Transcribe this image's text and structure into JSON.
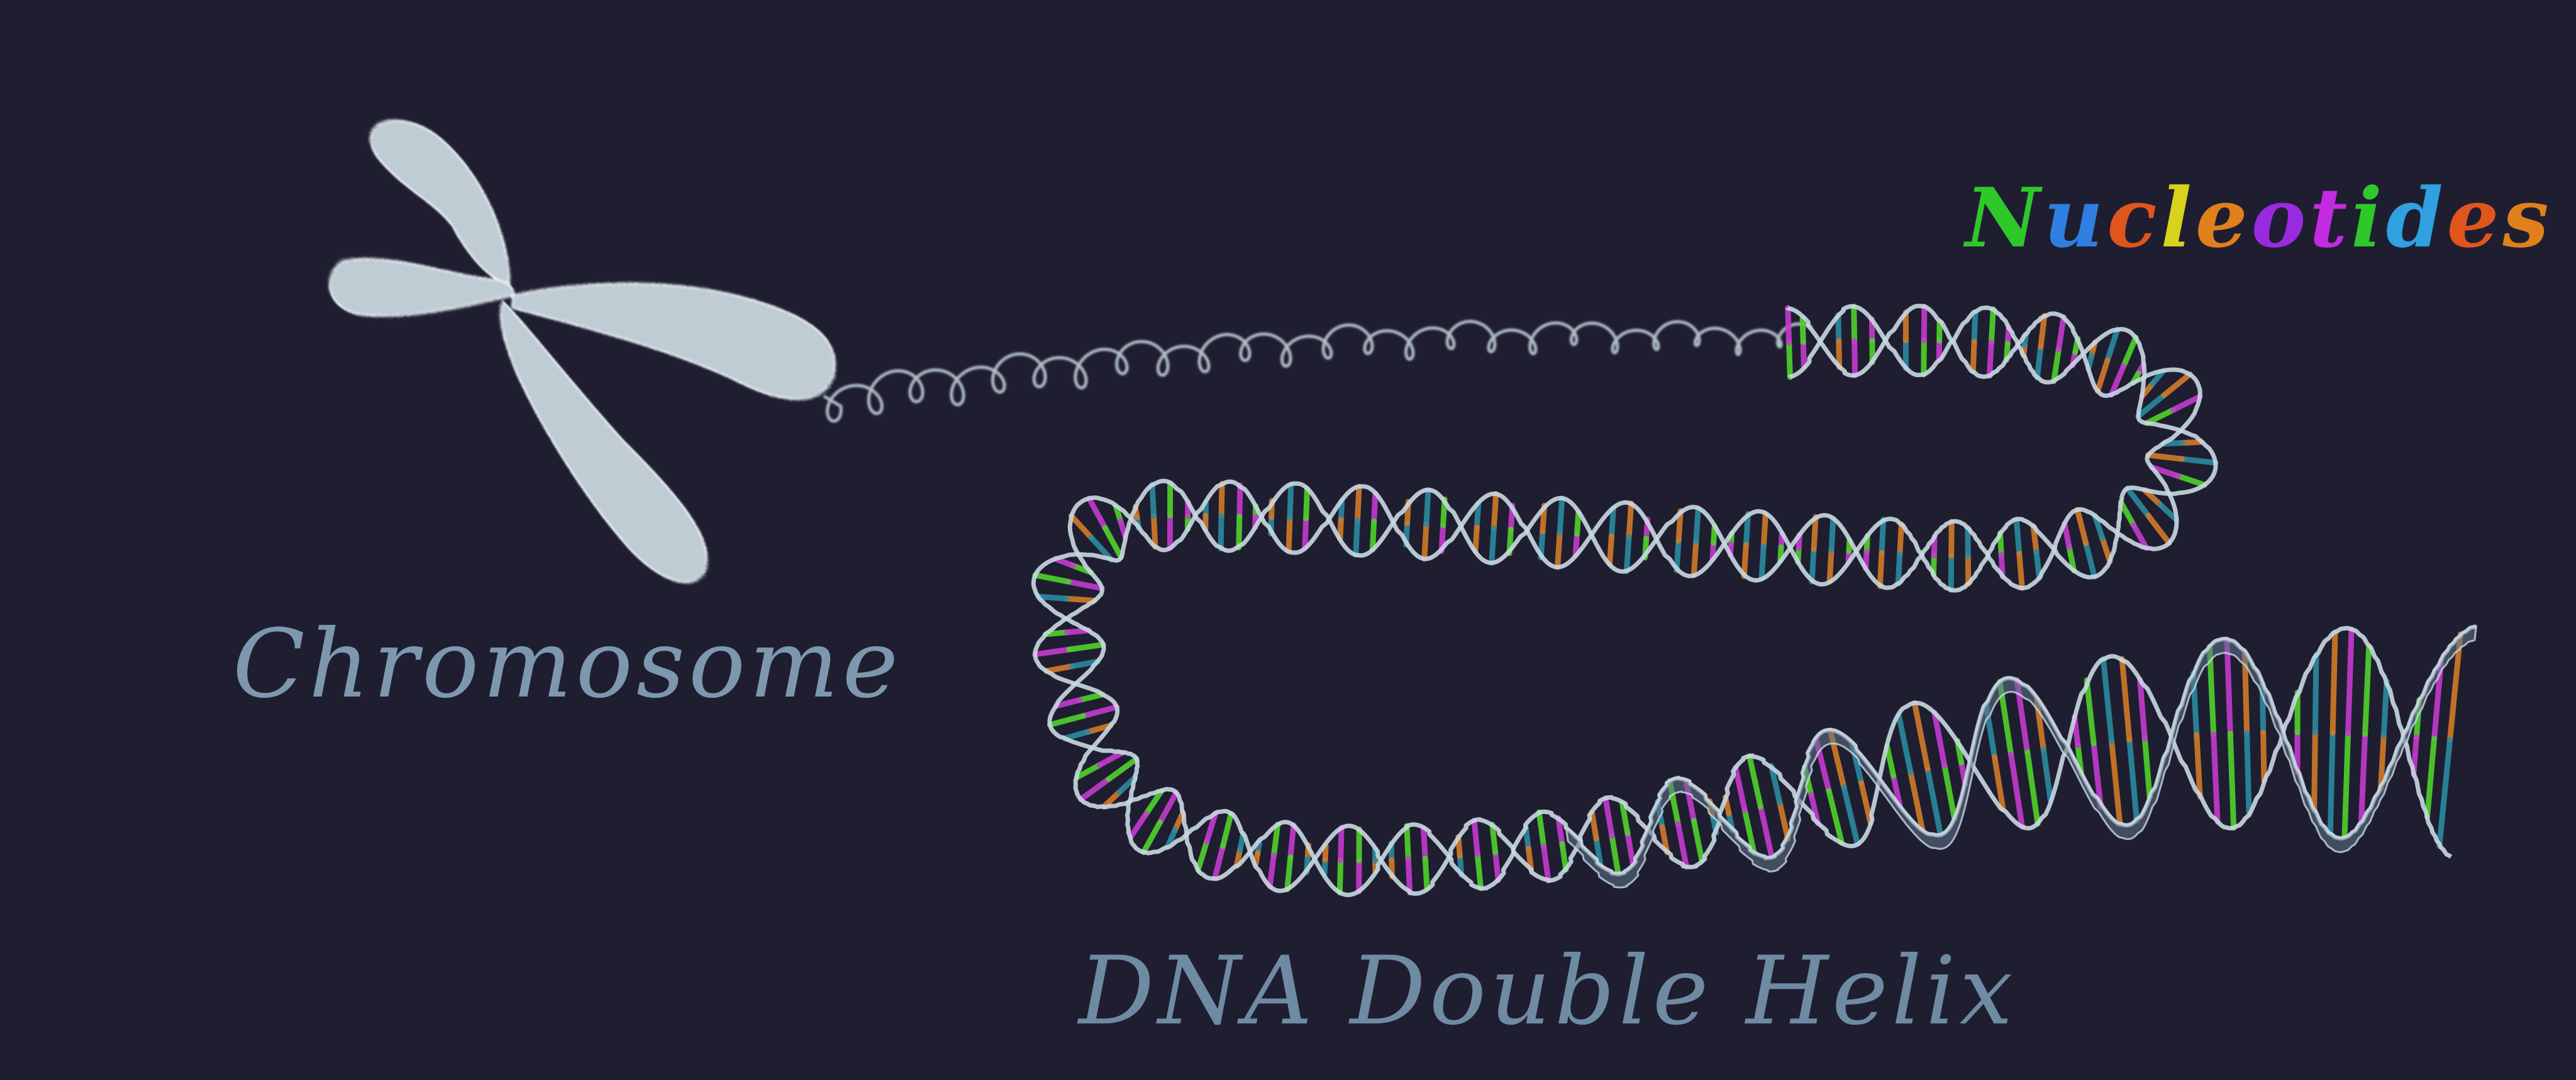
{
  "labels": {
    "chromosome": "Chromosome",
    "dna_double_helix": "DNA Double Helix",
    "nucleotides": "Nucleotides"
  },
  "colors": {
    "background": "#1f1e31",
    "chromosome": "#d6e4ea",
    "strand": "#c9d8e2",
    "label_text": "#7d98ae",
    "base_green": "#4fd12a",
    "base_magenta": "#c43ad0",
    "base_orange": "#d27a28",
    "base_teal": "#2a8aa0",
    "nucleotide_letters": [
      "#2ec82a",
      "#2f7fe0",
      "#e0551c",
      "#d8d21c",
      "#e0801c",
      "#9a2ae0",
      "#c42ae0",
      "#2ec82a",
      "#2fa0e0",
      "#e0551c",
      "#e0801c"
    ]
  },
  "icons": {
    "chromosome": "x-shaped-chromosome",
    "chromatin": "coiled-chromatin-fiber",
    "helix": "dna-double-helix-ribbon"
  }
}
